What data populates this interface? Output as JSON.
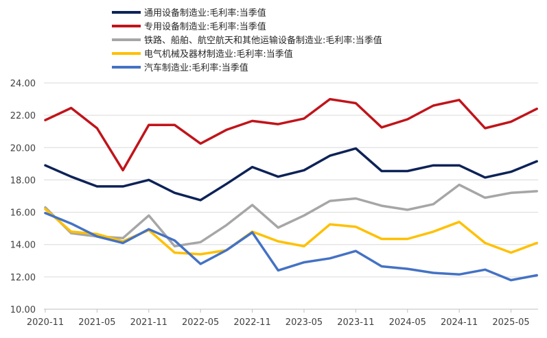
{
  "chart_data": {
    "type": "line",
    "title": "",
    "xlabel": "",
    "ylabel": "",
    "ylim": [
      10,
      24
    ],
    "y_ticks": [
      "10.00",
      "12.00",
      "14.00",
      "16.00",
      "18.00",
      "20.00",
      "22.00",
      "24.00"
    ],
    "x_tick_labels": [
      "2020-11",
      "2021-05",
      "2021-11",
      "2022-05",
      "2022-11",
      "2023-05",
      "2023-11",
      "2024-05",
      "2024-11",
      "2025-05"
    ],
    "x_tick_index": [
      0,
      2,
      4,
      6,
      8,
      10,
      12,
      14,
      16,
      18
    ],
    "x": [
      "2020-11",
      "2021-02",
      "2021-05",
      "2021-08",
      "2021-11",
      "2022-02",
      "2022-05",
      "2022-08",
      "2022-11",
      "2023-02",
      "2023-05",
      "2023-08",
      "2023-11",
      "2024-02",
      "2024-05",
      "2024-08",
      "2024-11",
      "2025-02",
      "2025-05",
      "2025-08"
    ],
    "grid": "horizontal",
    "legend_position": "top-left",
    "series": [
      {
        "name": "通用设备制造业:毛利率:当季值",
        "color": "#0d2257",
        "values": [
          18.9,
          18.2,
          17.6,
          17.6,
          18.0,
          17.2,
          16.75,
          17.75,
          18.8,
          18.2,
          18.6,
          19.5,
          19.95,
          18.55,
          18.55,
          18.9,
          18.9,
          18.15,
          18.5,
          19.15
        ]
      },
      {
        "name": "专用设备制造业:毛利率:当季值",
        "color": "#c0141a",
        "values": [
          21.7,
          22.45,
          21.2,
          18.6,
          21.4,
          21.4,
          20.25,
          21.1,
          21.65,
          21.45,
          21.8,
          23.0,
          22.75,
          21.25,
          21.75,
          22.6,
          22.95,
          21.2,
          21.6,
          22.4
        ]
      },
      {
        "name": "铁路、船舶、航空航天和其他运输设备制造业:毛利率:当季值",
        "color": "#a6a6a6",
        "values": [
          16.3,
          14.7,
          14.5,
          14.4,
          15.8,
          13.9,
          14.15,
          15.2,
          16.45,
          15.05,
          15.8,
          16.7,
          16.85,
          16.4,
          16.15,
          16.5,
          17.7,
          16.9,
          17.2,
          17.3
        ]
      },
      {
        "name": "电气机械及器材制造业:毛利率:当季值",
        "color": "#ffc000",
        "values": [
          16.2,
          14.8,
          14.65,
          14.2,
          14.9,
          13.5,
          13.4,
          13.65,
          14.8,
          14.2,
          13.9,
          15.25,
          15.1,
          14.35,
          14.35,
          14.8,
          15.4,
          14.1,
          13.5,
          14.1
        ]
      },
      {
        "name": "汽车制造业:毛利率:当季值",
        "color": "#4472c4",
        "values": [
          15.95,
          15.3,
          14.5,
          14.1,
          14.95,
          14.25,
          12.8,
          13.65,
          14.75,
          12.4,
          12.9,
          13.15,
          13.6,
          12.65,
          12.5,
          12.25,
          12.15,
          12.45,
          11.8,
          12.1
        ]
      }
    ]
  }
}
